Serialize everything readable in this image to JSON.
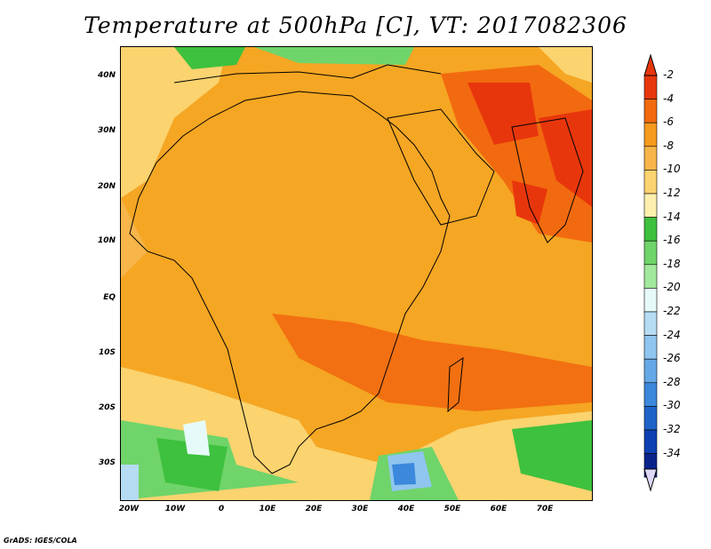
{
  "title": "Temperature at 500hPa [C], VT: 2017082306",
  "credit": "GrADS: IGES/COLA",
  "y_axis": [
    "40N",
    "30N",
    "20N",
    "10N",
    "EQ",
    "10S",
    "20S",
    "30S"
  ],
  "x_axis": [
    "20W",
    "10W",
    "0",
    "10E",
    "20E",
    "30E",
    "40E",
    "50E",
    "60E",
    "70E"
  ],
  "colorbar": {
    "labels": [
      "-2",
      "-4",
      "-6",
      "-8",
      "-10",
      "-12",
      "-14",
      "-16",
      "-18",
      "-20",
      "-22",
      "-24",
      "-26",
      "-28",
      "-30",
      "-32",
      "-34"
    ],
    "colors": [
      "#e8360c",
      "#f26a0f",
      "#f59a1c",
      "#f7b54a",
      "#fbd36f",
      "#fdf0ae",
      "#3ec13e",
      "#6fd46a",
      "#a2e89c",
      "#e6fbf9",
      "#b5dcf3",
      "#8fc5ef",
      "#66a8e6",
      "#3b88dc",
      "#1f63c9",
      "#0e3fb3",
      "#0a238c"
    ],
    "top_arrow_color": "#e8360c",
    "bottom_arrow_color": "#dcd8f5"
  }
}
